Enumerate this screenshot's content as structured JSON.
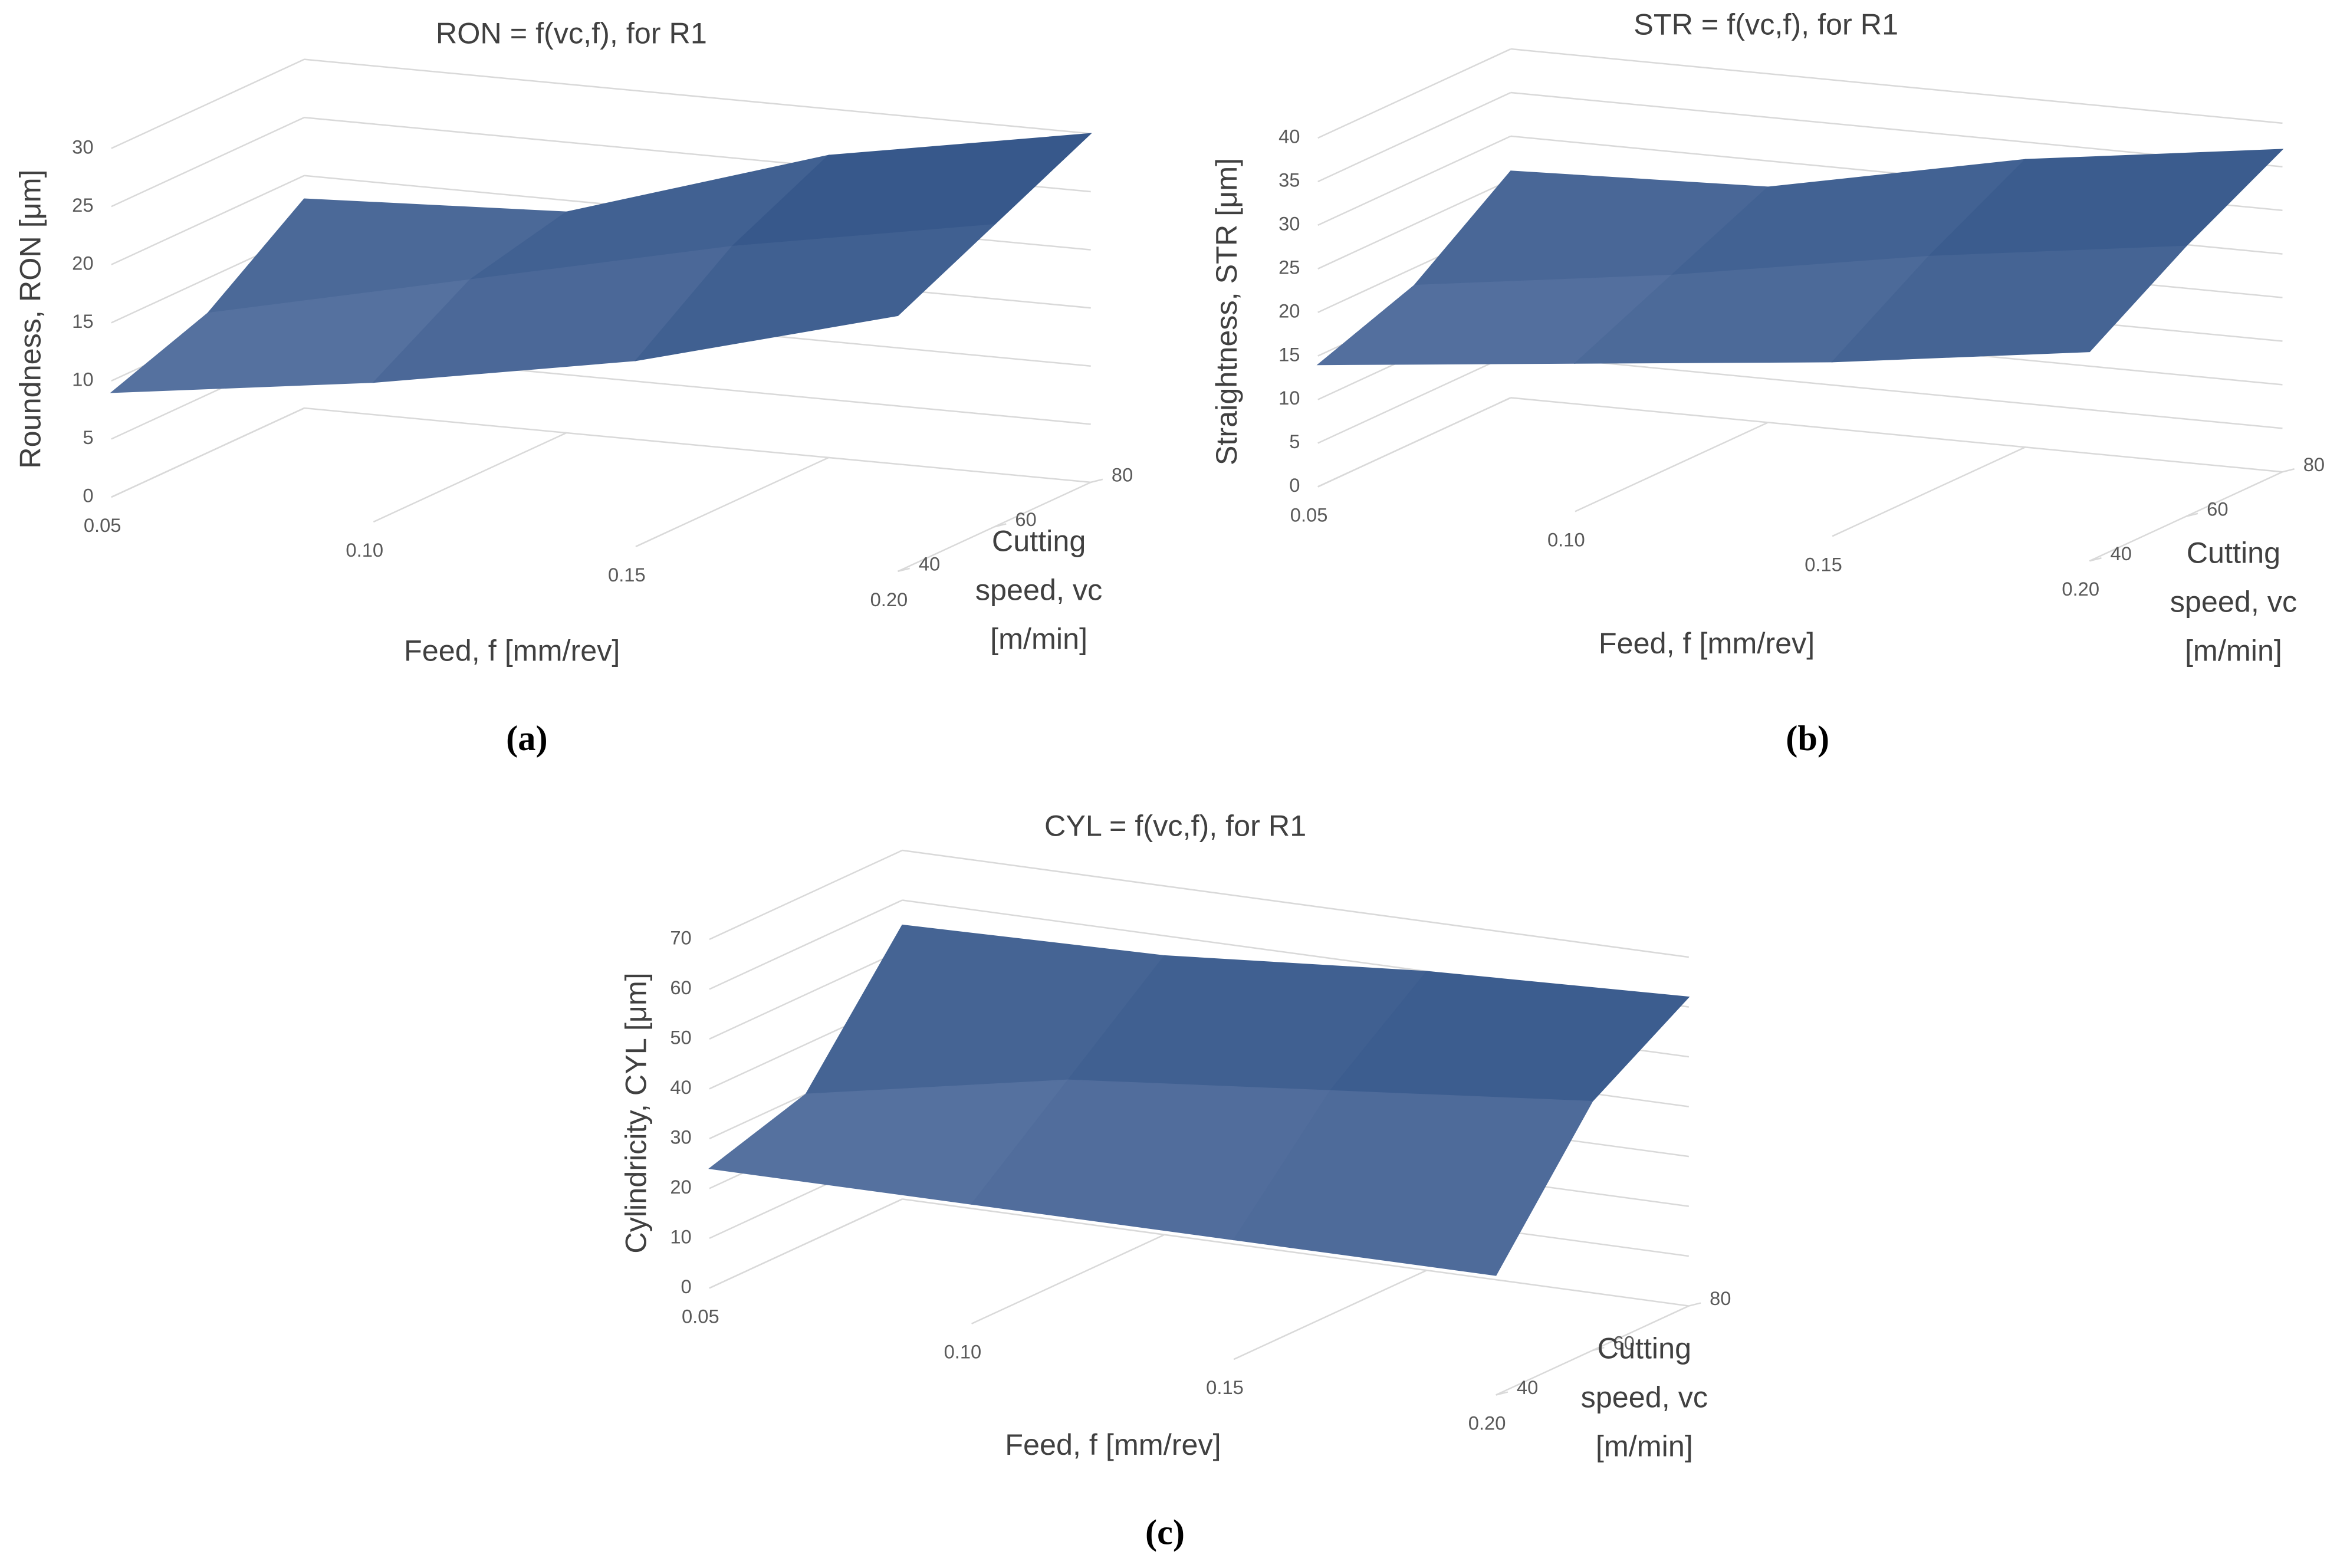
{
  "chart_data": [
    {
      "type": "surface",
      "title": "RON = f(vc,f), for R1",
      "panel_label": "(a)",
      "zlabel": "Roundness, RON [μm]",
      "xlabel": "Feed, f [mm/rev]",
      "ylabel": [
        "Cutting",
        "speed, vc",
        "[m/min]"
      ],
      "x": [
        0.05,
        0.1,
        0.15,
        0.2
      ],
      "y": [
        40,
        60,
        80
      ],
      "values": [
        [
          9,
          12,
          16,
          22
        ],
        [
          12,
          17,
          22,
          26
        ],
        [
          18,
          19,
          26,
          30
        ]
      ],
      "xlim": [
        0.05,
        0.2
      ],
      "xticks": [
        0.05,
        {
          "value": 0.1,
          "label": "0.10"
        },
        0.15,
        {
          "value": 0.2,
          "label": "0.20"
        }
      ],
      "ylim": [
        40,
        80
      ],
      "yticks": [
        40,
        60,
        80
      ],
      "zlim": [
        0,
        30
      ],
      "zticks": [
        0,
        5,
        10,
        15,
        20,
        25,
        30
      ],
      "color_low": "#8d9ec3",
      "color_high": "#2f5286",
      "grid": true
    },
    {
      "type": "surface",
      "title": "STR = f(vc,f), for R1",
      "panel_label": "(b)",
      "zlabel": "Straightness, STR [μm]",
      "xlabel": "Feed, f [mm/rev]",
      "ylabel": [
        "Cutting",
        "speed, vc",
        "[m/min]"
      ],
      "x": [
        0.05,
        0.1,
        0.15,
        0.2
      ],
      "y": [
        40,
        60,
        80
      ],
      "values": [
        [
          14,
          17,
          20,
          24
        ],
        [
          18,
          22,
          27,
          31
        ],
        [
          26,
          27,
          33,
          37
        ]
      ],
      "xlim": [
        0.05,
        0.2
      ],
      "xticks": [
        0.05,
        {
          "value": 0.1,
          "label": "0.10"
        },
        0.15,
        {
          "value": 0.2,
          "label": "0.20"
        }
      ],
      "ylim": [
        40,
        80
      ],
      "yticks": [
        40,
        60,
        80
      ],
      "zlim": [
        0,
        40
      ],
      "zticks": [
        0,
        5,
        10,
        15,
        20,
        25,
        30,
        35,
        40
      ],
      "color_low": "#8d9ec3",
      "color_high": "#2f5286",
      "grid": true
    },
    {
      "type": "surface",
      "title": "CYL = f(vc,f), for R1",
      "panel_label": "(c)",
      "zlabel": "Cylindricity, CYL [μm]",
      "xlabel": "Feed, f [mm/rev]",
      "ylabel": [
        "Cutting",
        "speed, vc",
        "[m/min]"
      ],
      "x": [
        0.05,
        0.1,
        0.15,
        0.2
      ],
      "y": [
        40,
        60,
        80
      ],
      "values": [
        [
          24,
          24,
          24,
          24
        ],
        [
          30,
          40,
          45,
          50
        ],
        [
          55,
          56,
          60,
          62
        ]
      ],
      "xlim": [
        0.05,
        0.2
      ],
      "xticks": [
        0.05,
        {
          "value": 0.1,
          "label": "0.10"
        },
        0.15,
        {
          "value": 0.2,
          "label": "0.20"
        }
      ],
      "ylim": [
        40,
        80
      ],
      "yticks": [
        40,
        60,
        80
      ],
      "zlim": [
        0,
        70
      ],
      "zticks": [
        0,
        10,
        20,
        30,
        40,
        50,
        60,
        70
      ],
      "color_low": "#8d9ec3",
      "color_high": "#2f5286",
      "grid": true
    }
  ]
}
